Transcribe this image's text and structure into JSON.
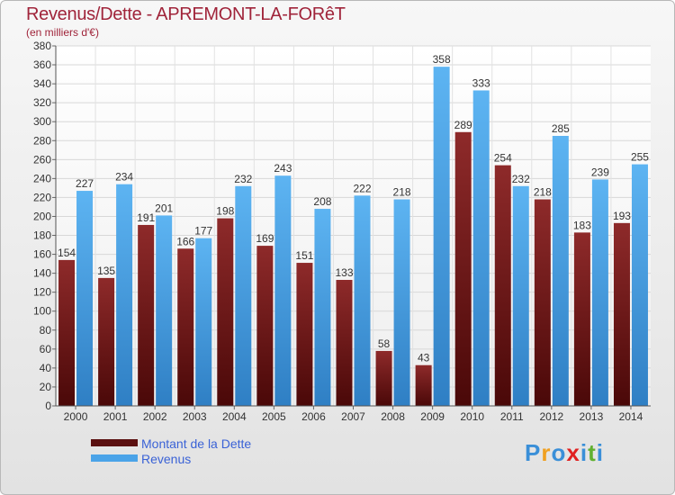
{
  "header": {
    "title": "Revenus/Dette - APREMONT-LA-FORêT",
    "subtitle": "(en milliers d'€)"
  },
  "chart_data": {
    "type": "bar",
    "categories": [
      "2000",
      "2001",
      "2002",
      "2003",
      "2004",
      "2005",
      "2006",
      "2007",
      "2008",
      "2009",
      "2010",
      "2011",
      "2012",
      "2013",
      "2014"
    ],
    "series": [
      {
        "name": "Montant de la Dette",
        "color": "#7a1c1c",
        "values": [
          154,
          135,
          191,
          166,
          198,
          169,
          151,
          133,
          58,
          43,
          289,
          254,
          218,
          183,
          193
        ],
        "labels": [
          "154",
          "135",
          "191",
          "166",
          "198",
          "169",
          "151",
          "133",
          "58",
          "43",
          "289",
          "254",
          "218",
          "183",
          "193"
        ]
      },
      {
        "name": "Revenus",
        "color": "#4aa3e8",
        "values": [
          227,
          234,
          201,
          177,
          232,
          243,
          208,
          222,
          218,
          358,
          333,
          232,
          285,
          239,
          255
        ],
        "labels": [
          "227",
          "234",
          "201",
          "177",
          "232",
          "243",
          "208",
          "222",
          "218",
          "358",
          "333",
          "232",
          "285",
          "239",
          "255"
        ]
      }
    ],
    "ylim": [
      0,
      380
    ],
    "yticks": [
      0,
      20,
      40,
      60,
      80,
      100,
      120,
      140,
      160,
      180,
      200,
      220,
      240,
      260,
      280,
      300,
      320,
      340,
      360,
      380
    ],
    "grid": true,
    "legend": "bottom-left"
  },
  "legend": {
    "items": [
      {
        "label": "Montant de la Dette",
        "color": "#5a0f0f"
      },
      {
        "label": "Revenus",
        "color": "#4aa3e8"
      }
    ]
  },
  "logo": {
    "letters": [
      "P",
      "r",
      "o",
      "x",
      "i",
      "t",
      "i"
    ],
    "colors": [
      "#3a8fd8",
      "#f0a020",
      "#3a8fd8",
      "#e02020",
      "#3a8fd8",
      "#60b030",
      "#3a8fd8"
    ]
  }
}
